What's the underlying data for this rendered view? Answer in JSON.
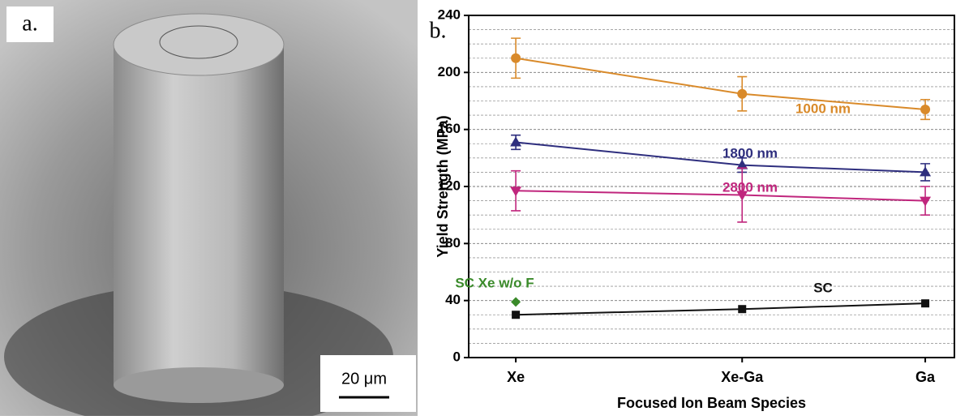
{
  "image_panel": {
    "label": "a.",
    "scale_bar": "20 μm"
  },
  "chart_data": {
    "type": "line",
    "label": "b.",
    "x_label": "Focused Ion Beam Species",
    "y_label": "Yield Strength (MPa)",
    "categories": [
      "Xe",
      "Xe-Ga",
      "Ga"
    ],
    "ylim": [
      0,
      240
    ],
    "yticks": [
      0,
      40,
      80,
      120,
      160,
      200,
      240
    ],
    "minor_yticks": [
      10,
      20,
      30,
      50,
      60,
      70,
      90,
      100,
      110,
      130,
      140,
      150,
      170,
      180,
      190,
      210,
      220,
      230
    ],
    "grid": true,
    "series": [
      {
        "name": "1000 nm",
        "color": "#d98a2a",
        "marker": "circle",
        "values": [
          210,
          185,
          174
        ],
        "errors": [
          14,
          12,
          7
        ]
      },
      {
        "name": "1800 nm",
        "color": "#2e2e7e",
        "marker": "triangle-up",
        "values": [
          151,
          135,
          130
        ],
        "errors": [
          5,
          5,
          6
        ]
      },
      {
        "name": "2800 nm",
        "color": "#c0267d",
        "marker": "triangle-down",
        "values": [
          117,
          114,
          110
        ],
        "errors": [
          14,
          19,
          10
        ]
      },
      {
        "name": "SC",
        "color": "#111111",
        "marker": "square",
        "values": [
          30,
          34,
          38
        ]
      },
      {
        "name": "SC Xe w/o F",
        "color": "#3a8a2a",
        "marker": "diamond",
        "values": [
          39,
          null,
          null
        ]
      }
    ]
  }
}
